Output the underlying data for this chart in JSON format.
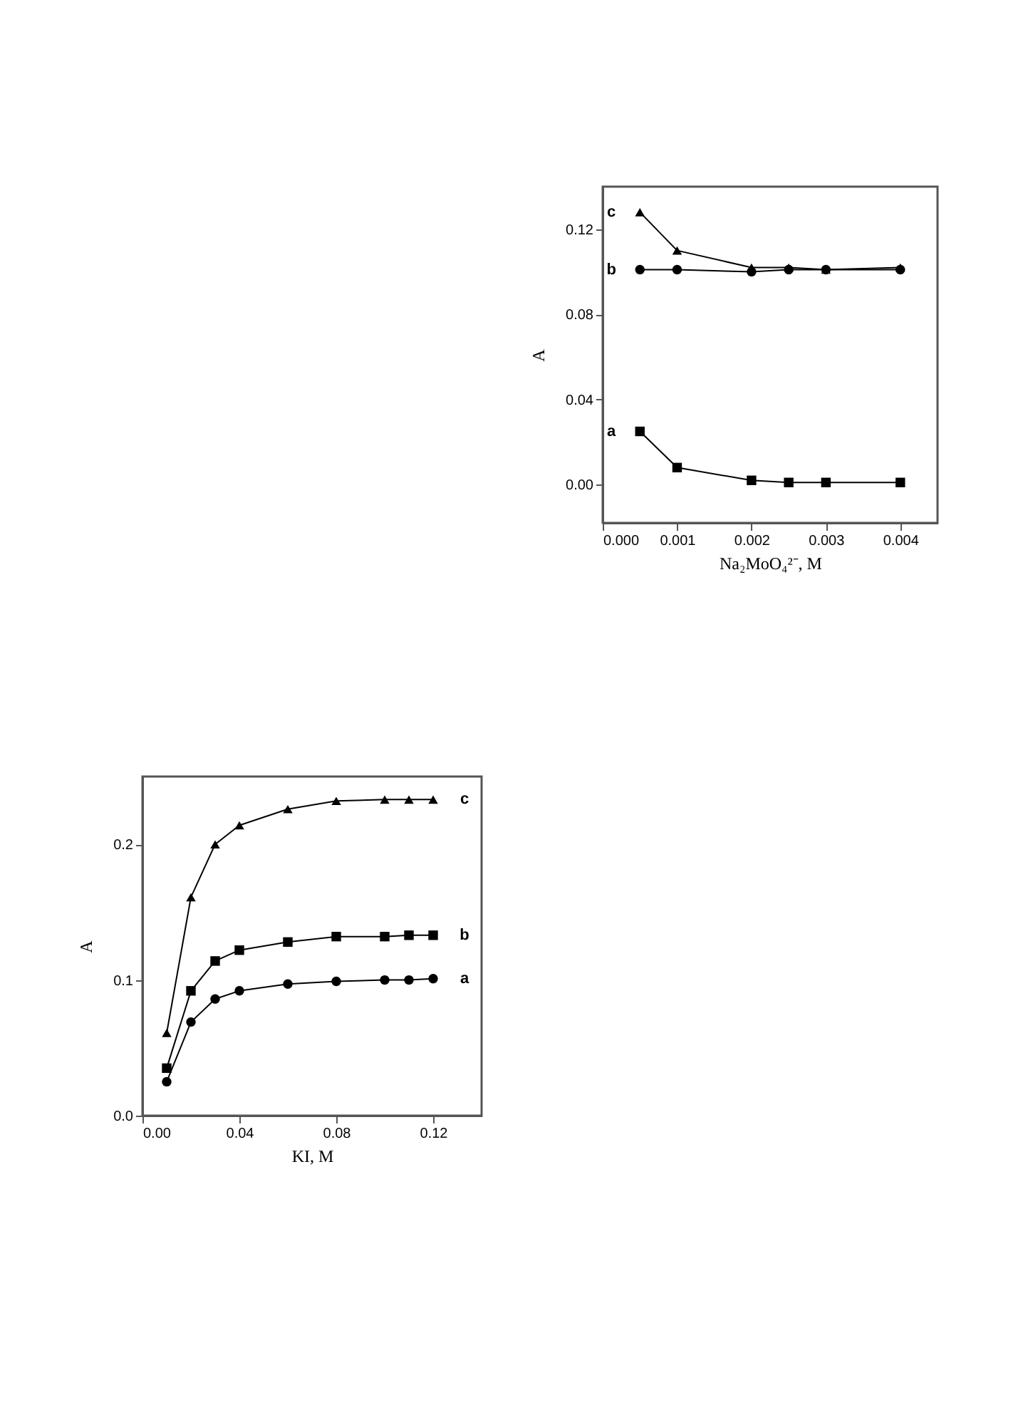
{
  "chart_data": [
    {
      "type": "line",
      "xlabel": "Na₂MoO₄²⁻, M",
      "ylabel": "A",
      "x": [
        0.0005,
        0.001,
        0.002,
        0.0025,
        0.003,
        0.004
      ],
      "xlim": [
        0,
        0.0045
      ],
      "ylim": [
        -0.018,
        0.14
      ],
      "xticks": [
        {
          "value": 0,
          "label": "0.000"
        },
        0.001,
        0.002,
        0.003,
        0.004
      ],
      "yticks": [
        {
          "value": 0,
          "label": "0.00"
        },
        0.04,
        0.08,
        0.12
      ],
      "legend": false,
      "grid": false,
      "series": [
        {
          "name": "a",
          "color": "#000000",
          "marker": "square",
          "values": [
            0.025,
            0.008,
            0.002,
            0.001,
            0.001,
            0.001
          ]
        },
        {
          "name": "b",
          "color": "#000000",
          "marker": "circle",
          "values": [
            0.101,
            0.101,
            0.1,
            0.101,
            0.101,
            0.101
          ]
        },
        {
          "name": "c",
          "color": "#000000",
          "marker": "triangle",
          "values": [
            0.128,
            0.11,
            0.102,
            0.102,
            0.101,
            0.102
          ]
        }
      ]
    },
    {
      "type": "line",
      "xlabel": "KI, M",
      "ylabel": "A",
      "x": [
        0.01,
        0.02,
        0.03,
        0.04,
        0.06,
        0.08,
        0.1,
        0.11,
        0.12
      ],
      "xlim": [
        0,
        0.14
      ],
      "ylim": [
        0,
        0.25
      ],
      "xticks": [
        {
          "value": 0,
          "label": "0.00"
        },
        0.04,
        0.08,
        0.12
      ],
      "yticks": [
        {
          "value": 0,
          "label": "0.0"
        },
        0.1,
        0.2
      ],
      "legend": false,
      "grid": false,
      "series": [
        {
          "name": "a",
          "color": "#000000",
          "marker": "circle",
          "values": [
            0.025,
            0.069,
            0.086,
            0.092,
            0.097,
            0.099,
            0.1,
            0.1,
            0.101
          ]
        },
        {
          "name": "b",
          "color": "#000000",
          "marker": "square",
          "values": [
            0.035,
            0.092,
            0.114,
            0.122,
            0.128,
            0.132,
            0.132,
            0.133,
            0.133
          ]
        },
        {
          "name": "c",
          "color": "#000000",
          "marker": "triangle",
          "values": [
            0.061,
            0.161,
            0.2,
            0.214,
            0.226,
            0.232,
            0.233,
            0.233,
            0.233
          ]
        }
      ]
    }
  ]
}
